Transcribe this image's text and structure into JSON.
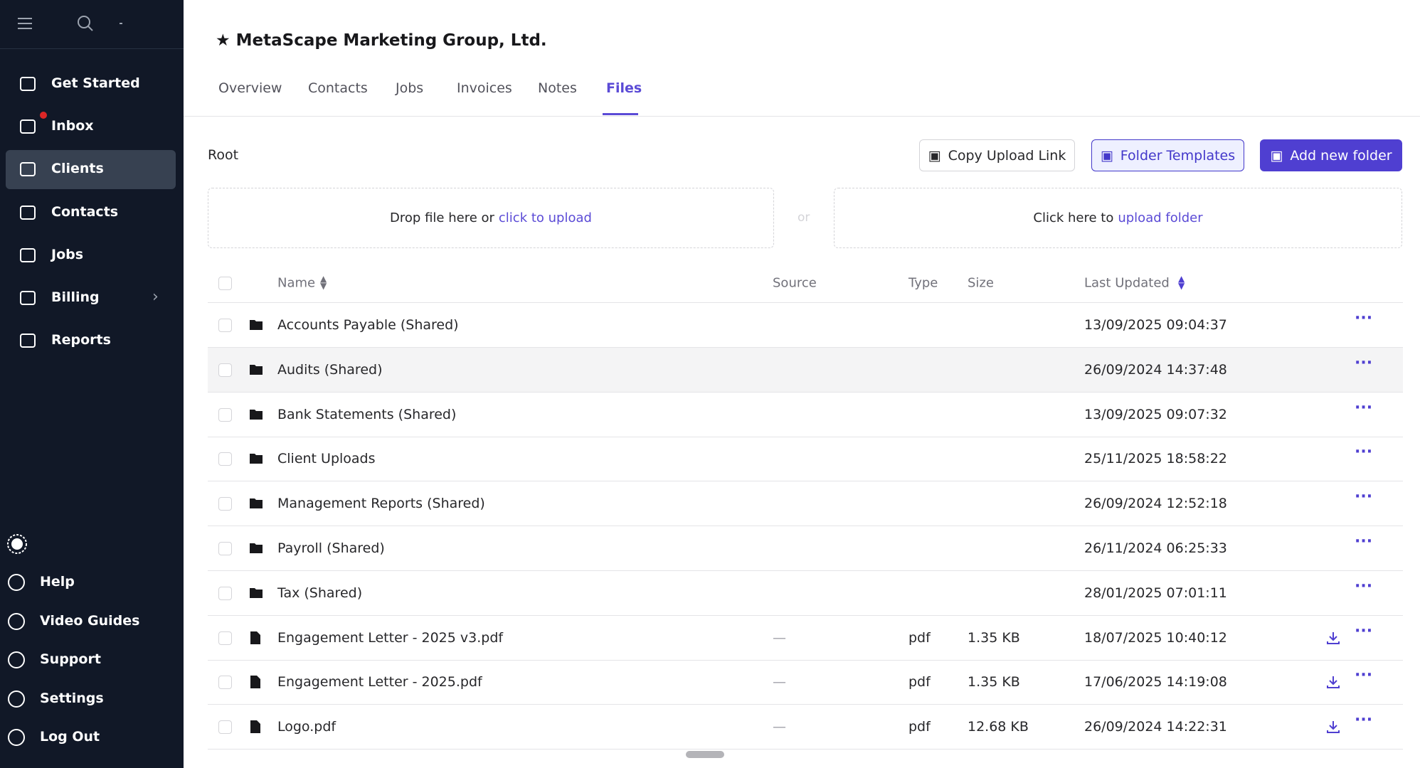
{
  "sidebar": {
    "nav": [
      "Get Started",
      "Inbox",
      "Clients",
      "Contacts",
      "Jobs",
      "Billing",
      "Reports"
    ],
    "active_nav": 2,
    "footer": [
      "Help",
      "Video Guides",
      "Support",
      "Settings",
      "Log Out"
    ]
  },
  "header": {
    "title": "MetaScape Marketing Group, Ltd.",
    "tabs": [
      "Overview",
      "Contacts",
      "Jobs",
      "Invoices",
      "Notes",
      "Files"
    ],
    "active_tab": 5
  },
  "toolbar": {
    "breadcrumb": "Root",
    "buttons": [
      "Copy Upload Link",
      "Folder Templates",
      "Add new folder"
    ]
  },
  "dropzones": [
    {
      "text": "Drop file here or",
      "link": "click to upload"
    },
    {
      "text": "Click here to",
      "link": "upload folder"
    }
  ],
  "dropzone_separator": "or",
  "table": {
    "columns": [
      "Name",
      "Source",
      "Type",
      "Size",
      "Last Updated"
    ],
    "rows": [
      {
        "kind": "folder",
        "name": "Accounts Payable (Shared)",
        "updated": "13/09/2025 09:04:37"
      },
      {
        "kind": "folder",
        "name": "Audits (Shared)",
        "updated": "26/09/2024 14:37:48"
      },
      {
        "kind": "folder",
        "name": "Bank Statements (Shared)",
        "updated": "13/09/2025 09:07:32"
      },
      {
        "kind": "folder",
        "name": "Client Uploads",
        "updated": "25/11/2025 18:58:22"
      },
      {
        "kind": "folder",
        "name": "Management Reports (Shared)",
        "updated": "26/09/2024 12:52:18"
      },
      {
        "kind": "folder",
        "name": "Payroll (Shared)",
        "updated": "26/11/2024 06:25:33"
      },
      {
        "kind": "folder",
        "name": "Tax (Shared)",
        "updated": "28/01/2025 07:01:11"
      },
      {
        "kind": "file",
        "name": "Engagement Letter - 2025 v3.pdf",
        "source": "—",
        "type": "pdf",
        "size": "1.35 KB",
        "updated": "18/07/2025 10:40:12"
      },
      {
        "kind": "file",
        "name": "Engagement Letter - 2025.pdf",
        "source": "—",
        "type": "pdf",
        "size": "1.35 KB",
        "updated": "17/06/2025 14:19:08"
      },
      {
        "kind": "file",
        "name": "Logo.pdf",
        "source": "—",
        "type": "pdf",
        "size": "12.68 KB",
        "updated": "26/09/2024 14:22:31"
      }
    ],
    "hover_row": 1
  }
}
